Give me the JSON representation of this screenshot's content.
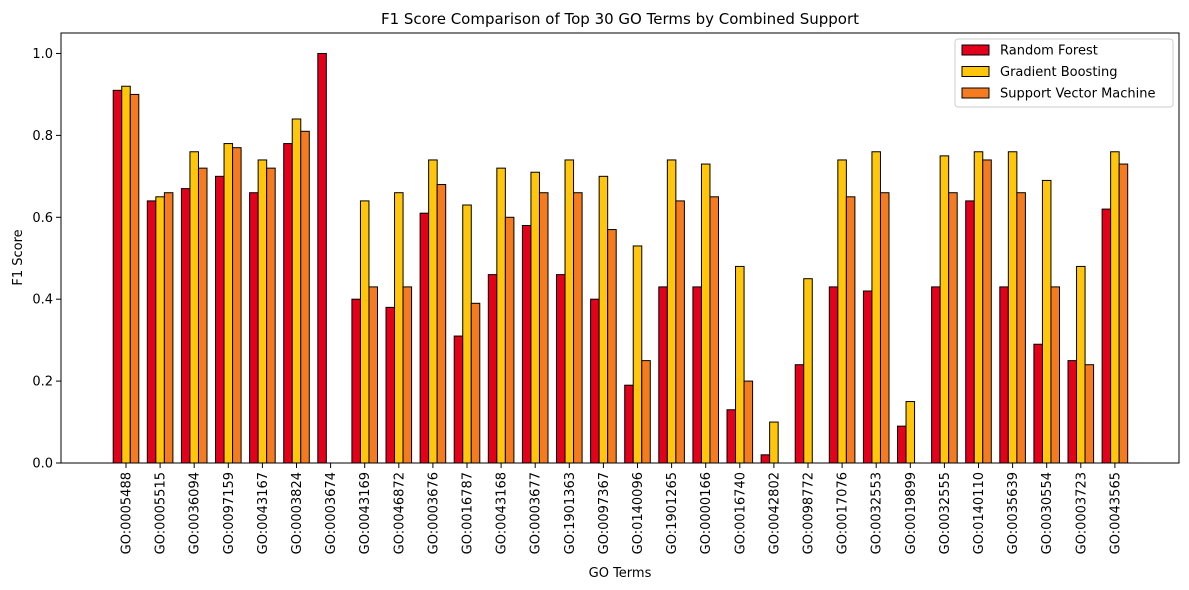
{
  "chart_data": {
    "type": "bar",
    "title": "F1 Score Comparison of Top 30 GO Terms by Combined Support",
    "xlabel": "GO Terms",
    "ylabel": "F1 Score",
    "ylim": [
      0,
      1.05
    ],
    "yticks": [
      0.0,
      0.2,
      0.4,
      0.6,
      0.8,
      1.0
    ],
    "ytick_labels": [
      "0.0",
      "0.2",
      "0.4",
      "0.6",
      "0.8",
      "1.0"
    ],
    "grid": false,
    "legend_position": "top-right",
    "categories": [
      "GO:0005488",
      "GO:0005515",
      "GO:0036094",
      "GO:0097159",
      "GO:0043167",
      "GO:0003824",
      "GO:0003674",
      "GO:0043169",
      "GO:0046872",
      "GO:0003676",
      "GO:0016787",
      "GO:0043168",
      "GO:0003677",
      "GO:1901363",
      "GO:0097367",
      "GO:0140096",
      "GO:1901265",
      "GO:0000166",
      "GO:0016740",
      "GO:0042802",
      "GO:0098772",
      "GO:0017076",
      "GO:0032553",
      "GO:0019899",
      "GO:0032555",
      "GO:0140110",
      "GO:0035639",
      "GO:0030554",
      "GO:0003723",
      "GO:0043565"
    ],
    "series": [
      {
        "name": "Random Forest",
        "color": "#e3001b",
        "values": [
          0.91,
          0.64,
          0.67,
          0.7,
          0.66,
          0.78,
          1.0,
          0.4,
          0.38,
          0.61,
          0.31,
          0.46,
          0.58,
          0.46,
          0.4,
          0.19,
          0.43,
          0.43,
          0.13,
          0.02,
          0.24,
          0.43,
          0.42,
          0.09,
          0.43,
          0.64,
          0.43,
          0.29,
          0.25,
          0.62
        ]
      },
      {
        "name": "Gradient Boosting",
        "color": "#ffc60b",
        "values": [
          0.92,
          0.65,
          0.76,
          0.78,
          0.74,
          0.84,
          0.0,
          0.64,
          0.66,
          0.74,
          0.63,
          0.72,
          0.71,
          0.74,
          0.7,
          0.53,
          0.74,
          0.73,
          0.48,
          0.1,
          0.45,
          0.74,
          0.76,
          0.15,
          0.75,
          0.76,
          0.76,
          0.69,
          0.48,
          0.76
        ]
      },
      {
        "name": "Support Vector Machine",
        "color": "#f47b20",
        "values": [
          0.9,
          0.66,
          0.72,
          0.77,
          0.72,
          0.81,
          0.0,
          0.43,
          0.43,
          0.68,
          0.39,
          0.6,
          0.66,
          0.66,
          0.57,
          0.25,
          0.64,
          0.65,
          0.2,
          0.0,
          0.0,
          0.65,
          0.66,
          0.0,
          0.66,
          0.74,
          0.66,
          0.43,
          0.24,
          0.73
        ]
      }
    ]
  }
}
